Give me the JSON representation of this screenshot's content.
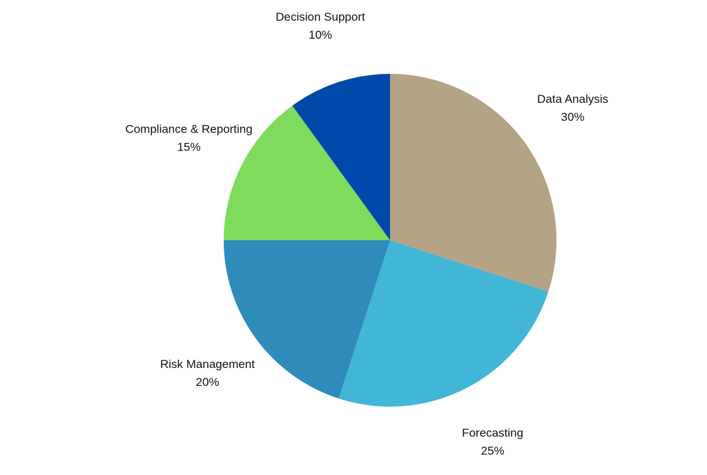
{
  "chart_data": {
    "type": "pie",
    "title": "",
    "start_angle_deg": 0,
    "direction": "clockwise",
    "slices": [
      {
        "label": "Data Analysis",
        "value": 30,
        "value_label": "30%",
        "color": "#B5A386"
      },
      {
        "label": "Forecasting",
        "value": 25,
        "value_label": "25%",
        "color": "#42B6D6"
      },
      {
        "label": "Risk Management",
        "value": 20,
        "value_label": "20%",
        "color": "#2E8BBA"
      },
      {
        "label": "Compliance & Reporting",
        "value": 15,
        "value_label": "15%",
        "color": "#7EDB5C"
      },
      {
        "label": "Decision Support",
        "value": 10,
        "value_label": "10%",
        "color": "#0049AA"
      }
    ]
  }
}
